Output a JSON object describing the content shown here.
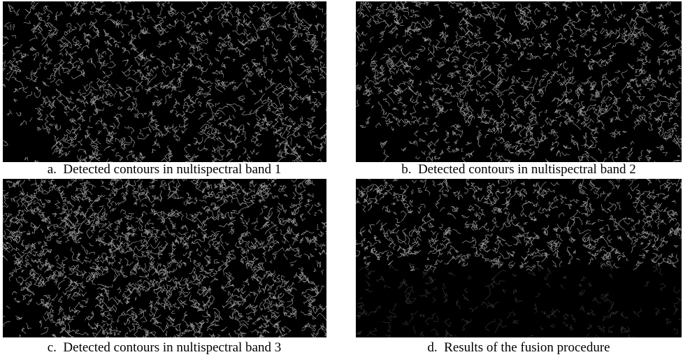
{
  "panels": [
    {
      "caption": "a.  Detected contours in nultispectral band 1"
    },
    {
      "caption": "b.  Detected contours in nultispectral band 2"
    },
    {
      "caption": "c.  Detected contours in nultispectral band 3"
    },
    {
      "caption": "d.  Results of the fusion procedure"
    }
  ]
}
